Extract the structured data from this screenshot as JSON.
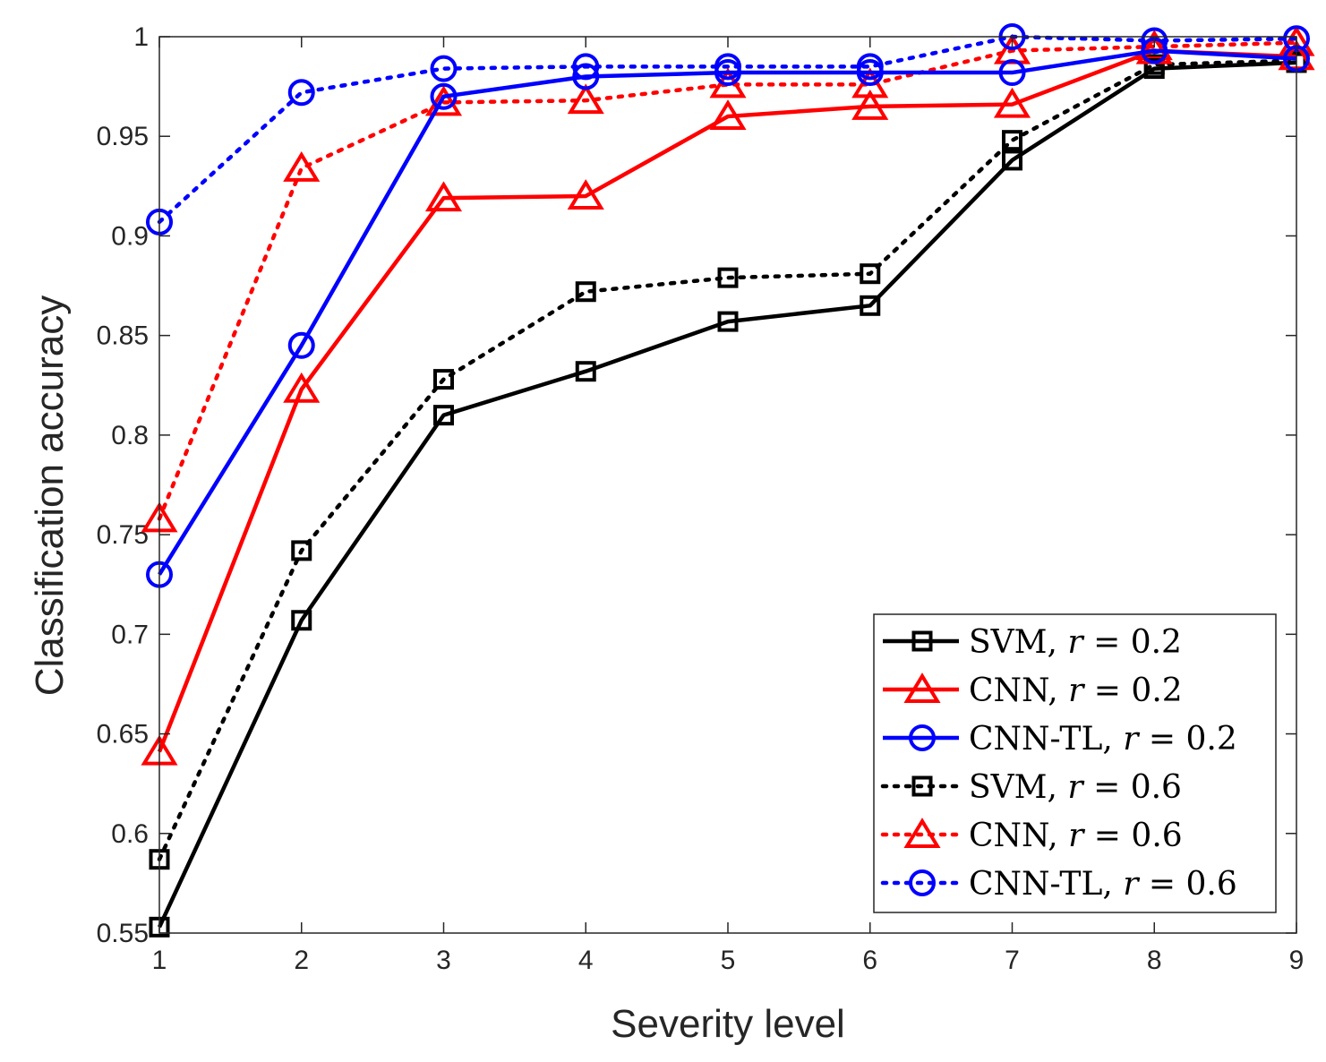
{
  "chart_data": {
    "type": "line",
    "xlabel": "Severity level",
    "ylabel": "Classification accuracy",
    "x": [
      1,
      2,
      3,
      4,
      5,
      6,
      7,
      8,
      9
    ],
    "xlim": [
      1,
      9
    ],
    "ylim": [
      0.55,
      1
    ],
    "xticks": [
      1,
      2,
      3,
      4,
      5,
      6,
      7,
      8,
      9
    ],
    "xtick_labels": [
      "1",
      "2",
      "3",
      "4",
      "5",
      "6",
      "7",
      "8",
      "9"
    ],
    "yticks": [
      0.55,
      0.6,
      0.65,
      0.7,
      0.75,
      0.8,
      0.85,
      0.9,
      0.95,
      1
    ],
    "ytick_labels": [
      "0.55",
      "0.6",
      "0.65",
      "0.7",
      "0.75",
      "0.8",
      "0.85",
      "0.9",
      "0.95",
      "1"
    ],
    "grid": false,
    "legend_position": "bottom-right",
    "series": [
      {
        "name": "SVM, r = 0.2",
        "label_prefix": "SVM, ",
        "label_var": "r",
        "label_value": " = 0.2",
        "color": "#000000",
        "marker": "square",
        "style": "solid",
        "values": [
          0.553,
          0.707,
          0.81,
          0.832,
          0.857,
          0.865,
          0.938,
          0.984,
          0.987
        ]
      },
      {
        "name": "CNN, r = 0.2",
        "label_prefix": "CNN, ",
        "label_var": "r",
        "label_value": " = 0.2",
        "color": "#ff0000",
        "marker": "triangle",
        "style": "solid",
        "values": [
          0.641,
          0.823,
          0.919,
          0.92,
          0.96,
          0.965,
          0.966,
          0.993,
          0.99
        ]
      },
      {
        "name": "CNN-TL, r = 0.2",
        "label_prefix": "CNN-TL, ",
        "label_var": "r",
        "label_value": " = 0.2",
        "color": "#0000ff",
        "marker": "circle",
        "style": "solid",
        "values": [
          0.73,
          0.845,
          0.97,
          0.98,
          0.982,
          0.982,
          0.982,
          0.993,
          0.989
        ]
      },
      {
        "name": "SVM, r = 0.6",
        "label_prefix": "SVM, ",
        "label_var": "r",
        "label_value": " = 0.6",
        "color": "#000000",
        "marker": "square",
        "style": "dotted",
        "values": [
          0.587,
          0.742,
          0.828,
          0.872,
          0.879,
          0.881,
          0.948,
          0.986,
          0.988
        ]
      },
      {
        "name": "CNN, r = 0.6",
        "label_prefix": "CNN, ",
        "label_var": "r",
        "label_value": " = 0.6",
        "color": "#ff0000",
        "marker": "triangle",
        "style": "dotted",
        "values": [
          0.758,
          0.934,
          0.967,
          0.968,
          0.976,
          0.976,
          0.993,
          0.995,
          0.997
        ]
      },
      {
        "name": "CNN-TL, r = 0.6",
        "label_prefix": "CNN-TL, ",
        "label_var": "r",
        "label_value": " = 0.6",
        "color": "#0000ff",
        "marker": "circle",
        "style": "dotted",
        "values": [
          0.907,
          0.972,
          0.984,
          0.985,
          0.985,
          0.985,
          1.0,
          0.998,
          0.999
        ]
      }
    ]
  }
}
